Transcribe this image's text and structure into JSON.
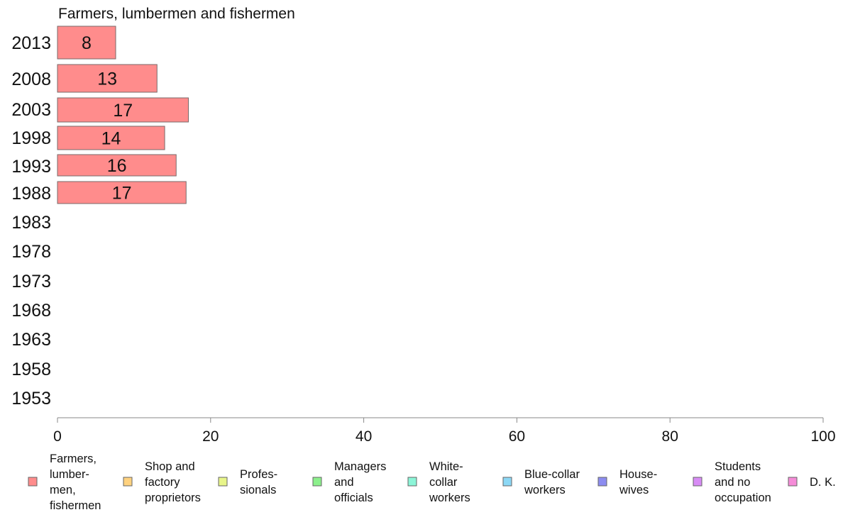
{
  "chart_data": {
    "type": "bar",
    "orientation": "horizontal",
    "title": "Farmers, lumbermen and fishermen",
    "categories": [
      "2013",
      "2008",
      "2003",
      "1998",
      "1993",
      "1988",
      "1983",
      "1978",
      "1973",
      "1968",
      "1963",
      "1958",
      "1953"
    ],
    "series": [
      {
        "name": "Farmers, lumber- men, fishermen",
        "color": "#ff8c8c",
        "values": [
          7.6,
          13.0,
          17.1,
          14.0,
          15.5,
          16.8,
          null,
          null,
          null,
          null,
          null,
          null,
          null
        ],
        "labels": [
          "8",
          "13",
          "17",
          "14",
          "16",
          "17",
          null,
          null,
          null,
          null,
          null,
          null,
          null
        ]
      }
    ],
    "xlim": [
      0,
      100
    ],
    "xticks": [
      "0",
      "20",
      "40",
      "60",
      "80",
      "100"
    ],
    "grid": false,
    "legend": {
      "placement": "bottom",
      "items": [
        {
          "lines": [
            "Farmers,",
            "lumber-",
            "men,",
            "fishermen"
          ],
          "color": "#ff8c8c"
        },
        {
          "lines": [
            "Shop and",
            "factory",
            "proprietors"
          ],
          "color": "#ffd27f"
        },
        {
          "lines": [
            "Profes-",
            "sionals"
          ],
          "color": "#e8f58a"
        },
        {
          "lines": [
            "Managers",
            "and",
            "officials"
          ],
          "color": "#8cf08c"
        },
        {
          "lines": [
            "White-",
            "collar",
            "workers"
          ],
          "color": "#8cf5d8"
        },
        {
          "lines": [
            "Blue-collar",
            "workers"
          ],
          "color": "#8cd8f5"
        },
        {
          "lines": [
            "House-",
            "wives"
          ],
          "color": "#8c8cf0"
        },
        {
          "lines": [
            "Students",
            "and no",
            "occupation"
          ],
          "color": "#d88cf5"
        },
        {
          "lines": [
            "D. K."
          ],
          "color": "#f58cd8"
        }
      ]
    }
  }
}
